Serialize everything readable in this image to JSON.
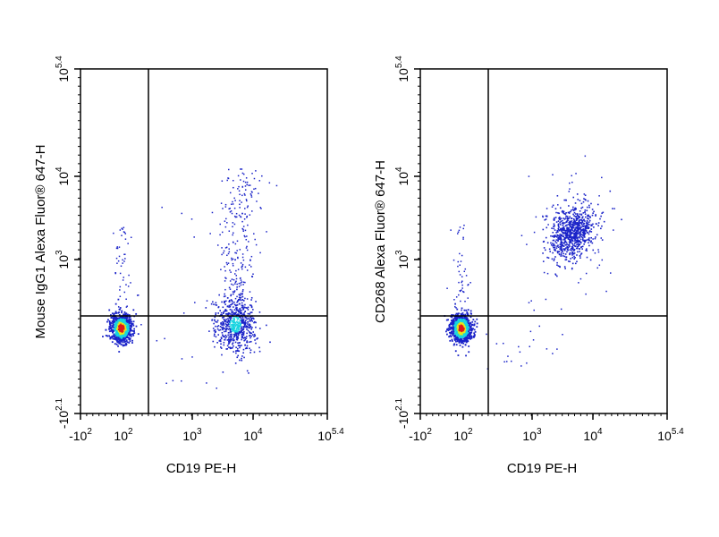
{
  "chart_data": [
    {
      "type": "scatter",
      "panel": "left",
      "xlabel": "CD19 PE-H",
      "ylabel": "Mouse IgG1 Alexa Fluor® 647-H",
      "xscale": "biexponential",
      "yscale": "biexponential",
      "xlim": [
        "-10^2",
        "10^5.4"
      ],
      "ylim": [
        "-10^2.1",
        "10^5.4"
      ],
      "xticks": [
        {
          "base": "-10",
          "exp": "2"
        },
        {
          "base": "10",
          "exp": "2"
        },
        {
          "base": "10",
          "exp": "3"
        },
        {
          "base": "10",
          "exp": "4"
        },
        {
          "base": "10",
          "exp": "5.4"
        }
      ],
      "yticks": [
        {
          "base": "-10",
          "exp": "2.1"
        },
        {
          "base": "10",
          "exp": "3"
        },
        {
          "base": "10",
          "exp": "4"
        },
        {
          "base": "10",
          "exp": "5.4"
        }
      ],
      "gate": {
        "x": 250,
        "y": 450
      },
      "series": [
        {
          "population": "CD19- / IgG1-",
          "center": {
            "x": 55,
            "y": 50
          },
          "density": "high"
        },
        {
          "population": "CD19+ / IgG1-",
          "center": {
            "x": 5000,
            "y": 70
          },
          "density": "medium"
        },
        {
          "population": "CD19+ / IgG1 low",
          "center": {
            "x": 4500,
            "y": 700
          },
          "density": "sparse"
        }
      ]
    },
    {
      "type": "scatter",
      "panel": "right",
      "xlabel": "CD19 PE-H",
      "ylabel": "CD268 Alexa Fluor® 647-H",
      "xscale": "biexponential",
      "yscale": "biexponential",
      "xlim": [
        "-10^2",
        "10^5.4"
      ],
      "ylim": [
        "-10^2.1",
        "10^5.4"
      ],
      "xticks": [
        {
          "base": "-10",
          "exp": "2"
        },
        {
          "base": "10",
          "exp": "2"
        },
        {
          "base": "10",
          "exp": "3"
        },
        {
          "base": "10",
          "exp": "4"
        },
        {
          "base": "10",
          "exp": "5.4"
        }
      ],
      "yticks": [
        {
          "base": "-10",
          "exp": "2.1"
        },
        {
          "base": "10",
          "exp": "3"
        },
        {
          "base": "10",
          "exp": "4"
        },
        {
          "base": "10",
          "exp": "5.4"
        }
      ],
      "gate": {
        "x": 250,
        "y": 450
      },
      "series": [
        {
          "population": "CD19- / CD268-",
          "center": {
            "x": 55,
            "y": 50
          },
          "density": "high"
        },
        {
          "population": "CD19+ / CD268+",
          "center": {
            "x": 4500,
            "y": 2200
          },
          "density": "medium"
        }
      ]
    }
  ],
  "colors": {
    "dot_low": "#1a23c8",
    "dot_mid": "#18d4e0",
    "dot_high": "#e8e81a",
    "dot_peak": "#e01818",
    "axis": "#000000"
  }
}
